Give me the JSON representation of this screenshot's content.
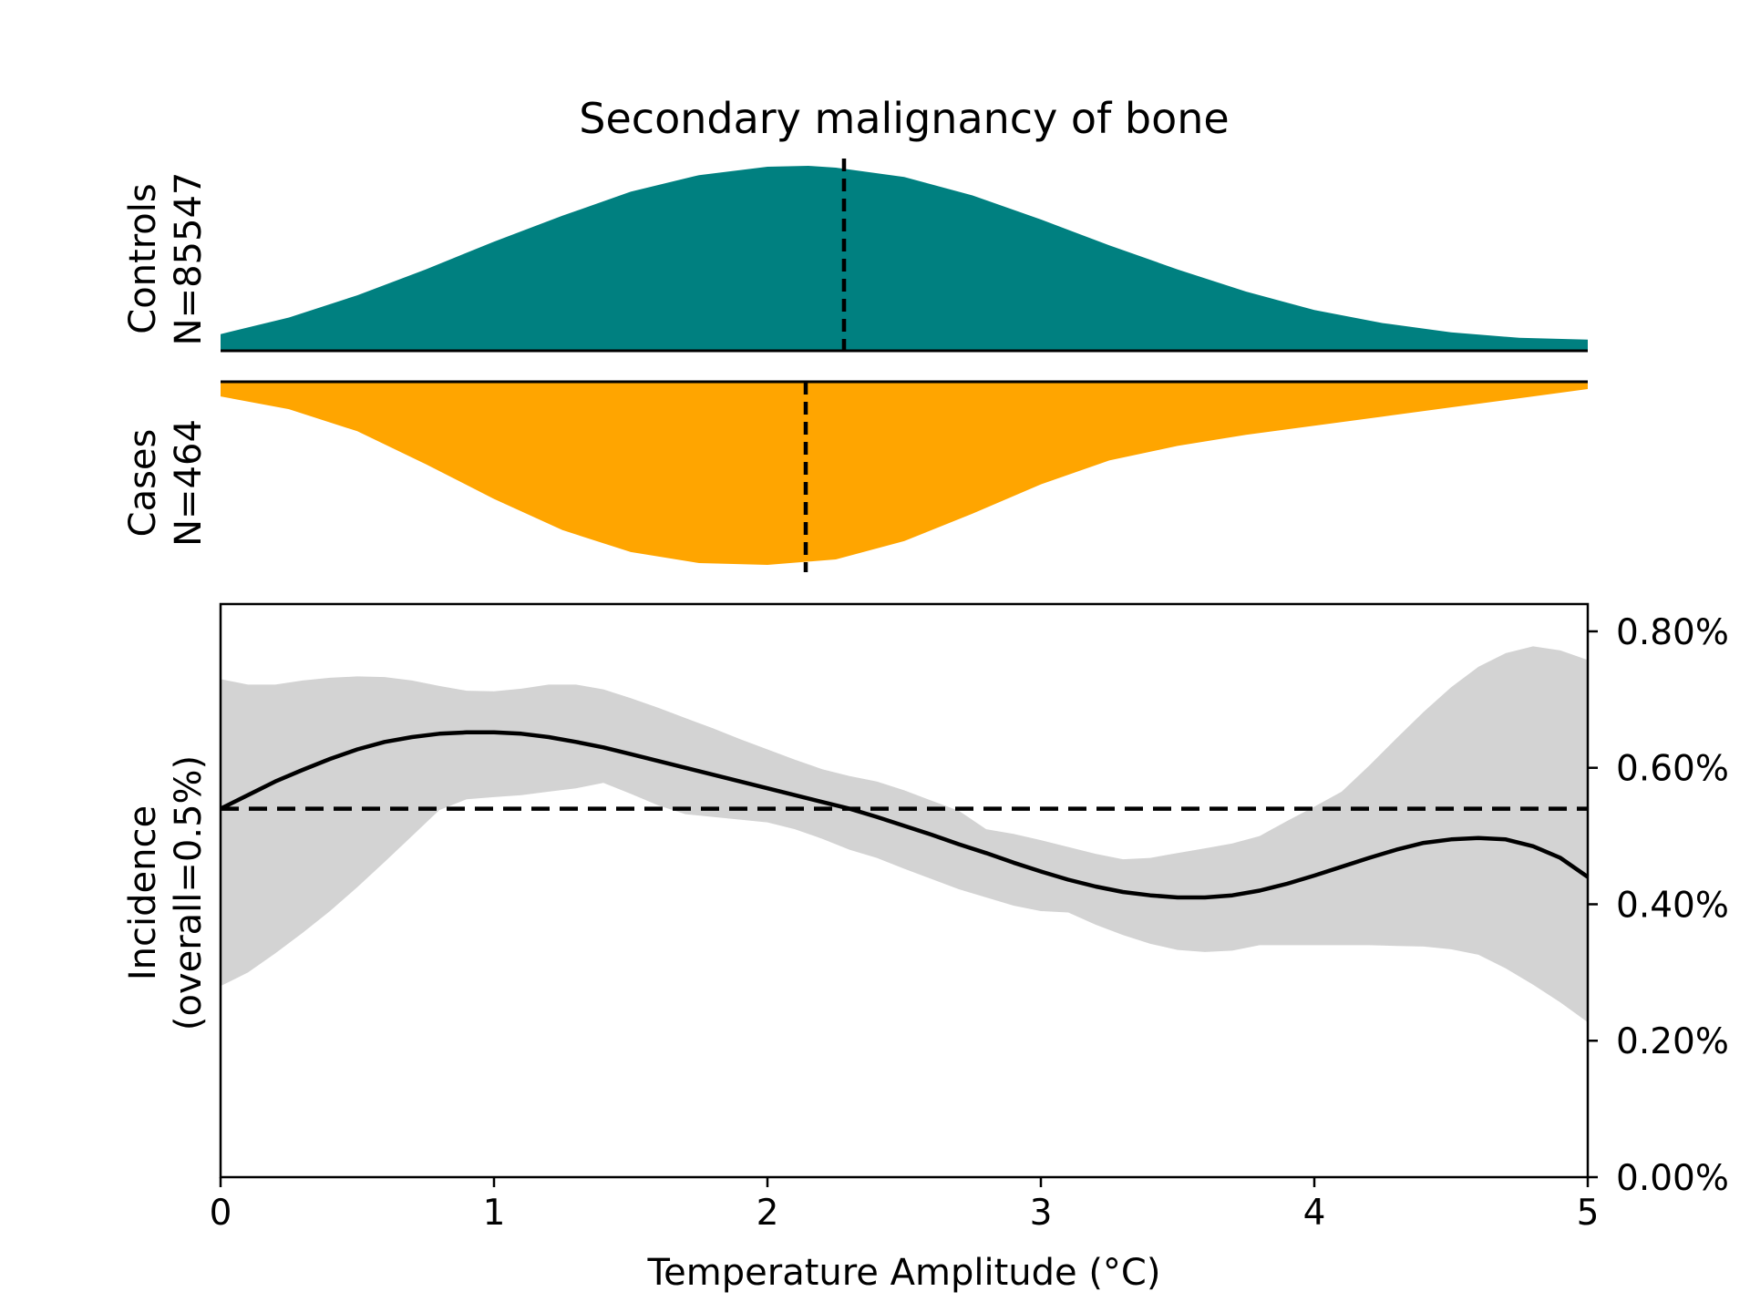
{
  "chart_data": [
    {
      "panel": "controls",
      "type": "area",
      "title": "Secondary malignancy of bone",
      "label_line1": "Controls",
      "label_line2": "N=85547",
      "color": "#008080",
      "mean_x": 2.28,
      "x": [
        0,
        0.25,
        0.5,
        0.75,
        1.0,
        1.25,
        1.5,
        1.75,
        2.0,
        2.15,
        2.25,
        2.5,
        2.75,
        3.0,
        3.25,
        3.5,
        3.75,
        4.0,
        4.25,
        4.5,
        4.75,
        5.0
      ],
      "density": [
        0.09,
        0.18,
        0.3,
        0.44,
        0.59,
        0.73,
        0.86,
        0.95,
        0.995,
        1.0,
        0.99,
        0.94,
        0.84,
        0.71,
        0.57,
        0.44,
        0.32,
        0.22,
        0.15,
        0.1,
        0.07,
        0.06
      ]
    },
    {
      "panel": "cases",
      "type": "area",
      "label_line1": "Cases",
      "label_line2": "N=464",
      "color": "#FFA500",
      "mean_x": 2.14,
      "x": [
        0,
        0.25,
        0.5,
        0.75,
        1.0,
        1.25,
        1.5,
        1.75,
        2.0,
        2.25,
        2.5,
        2.75,
        3.0,
        3.25,
        3.5,
        3.75,
        4.0,
        4.25,
        4.5,
        4.75,
        5.0
      ],
      "density": [
        0.08,
        0.15,
        0.27,
        0.45,
        0.64,
        0.81,
        0.93,
        0.99,
        1.0,
        0.97,
        0.87,
        0.72,
        0.56,
        0.43,
        0.35,
        0.29,
        0.24,
        0.19,
        0.14,
        0.09,
        0.04
      ]
    },
    {
      "panel": "incidence",
      "type": "line",
      "xlabel": "Temperature Amplitude (°C)",
      "ylabel_line1": "Incidence",
      "ylabel_line2": "(overall=0.5%)",
      "xlim": [
        0,
        5
      ],
      "ylim": [
        0,
        0.84
      ],
      "x_ticks": [
        0,
        1,
        2,
        3,
        4,
        5
      ],
      "x_tick_labels": [
        "0",
        "1",
        "2",
        "3",
        "4",
        "5"
      ],
      "y_ticks": [
        0,
        0.2,
        0.4,
        0.6,
        0.8
      ],
      "y_tick_labels": [
        "0.00%",
        "0.20%",
        "0.40%",
        "0.60%",
        "0.80%"
      ],
      "reference_line": 0.54,
      "band_color": "#d3d3d3",
      "x": [
        0,
        0.1,
        0.2,
        0.3,
        0.4,
        0.5,
        0.6,
        0.7,
        0.8,
        0.9,
        1.0,
        1.1,
        1.2,
        1.3,
        1.4,
        1.5,
        1.6,
        1.7,
        1.8,
        1.9,
        2.0,
        2.1,
        2.2,
        2.3,
        2.4,
        2.5,
        2.6,
        2.7,
        2.8,
        2.9,
        3.0,
        3.1,
        3.2,
        3.3,
        3.4,
        3.5,
        3.6,
        3.7,
        3.8,
        3.9,
        4.0,
        4.1,
        4.2,
        4.3,
        4.4,
        4.5,
        4.6,
        4.7,
        4.8,
        4.9,
        5.0
      ],
      "estimate": [
        0.54,
        0.56,
        0.58,
        0.597,
        0.613,
        0.627,
        0.638,
        0.645,
        0.65,
        0.652,
        0.652,
        0.65,
        0.645,
        0.638,
        0.63,
        0.62,
        0.61,
        0.6,
        0.59,
        0.58,
        0.57,
        0.56,
        0.55,
        0.54,
        0.528,
        0.515,
        0.502,
        0.488,
        0.475,
        0.461,
        0.448,
        0.436,
        0.426,
        0.418,
        0.413,
        0.41,
        0.41,
        0.413,
        0.42,
        0.43,
        0.442,
        0.455,
        0.468,
        0.48,
        0.49,
        0.495,
        0.497,
        0.495,
        0.485,
        0.468,
        0.44
      ],
      "upper": [
        0.73,
        0.722,
        0.722,
        0.728,
        0.732,
        0.734,
        0.733,
        0.728,
        0.72,
        0.713,
        0.712,
        0.716,
        0.722,
        0.722,
        0.715,
        0.702,
        0.688,
        0.673,
        0.658,
        0.642,
        0.627,
        0.612,
        0.598,
        0.588,
        0.58,
        0.567,
        0.552,
        0.537,
        0.51,
        0.503,
        0.494,
        0.484,
        0.474,
        0.466,
        0.468,
        0.475,
        0.482,
        0.489,
        0.5,
        0.522,
        0.543,
        0.565,
        0.603,
        0.643,
        0.682,
        0.718,
        0.748,
        0.768,
        0.778,
        0.772,
        0.758
      ],
      "lower": [
        0.28,
        0.3,
        0.328,
        0.358,
        0.39,
        0.425,
        0.462,
        0.5,
        0.538,
        0.554,
        0.557,
        0.56,
        0.565,
        0.57,
        0.578,
        0.562,
        0.545,
        0.532,
        0.528,
        0.524,
        0.52,
        0.51,
        0.496,
        0.48,
        0.468,
        0.452,
        0.437,
        0.422,
        0.41,
        0.398,
        0.39,
        0.388,
        0.37,
        0.355,
        0.342,
        0.333,
        0.33,
        0.332,
        0.34,
        0.34,
        0.34,
        0.34,
        0.34,
        0.339,
        0.338,
        0.334,
        0.326,
        0.306,
        0.282,
        0.256,
        0.227
      ]
    }
  ]
}
